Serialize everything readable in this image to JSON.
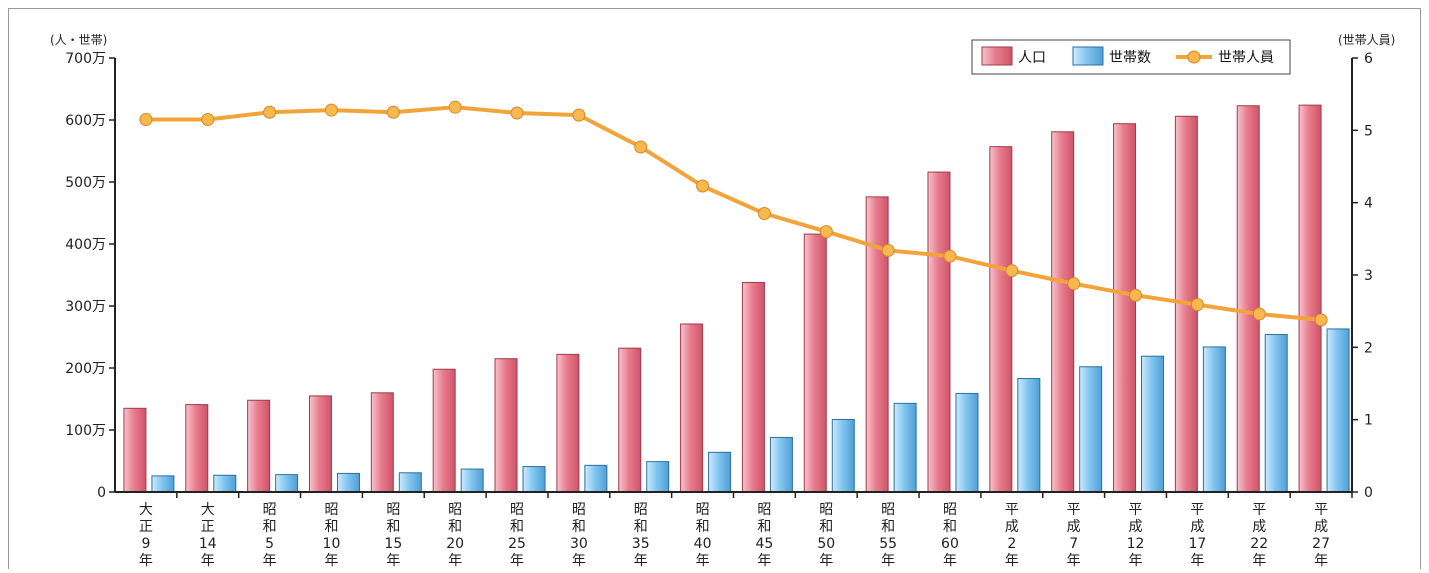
{
  "chart_data": {
    "type": "bar",
    "left_axis_unit": "(人・世帯)",
    "right_axis_unit": "(世帯人員)",
    "left_ticks": [
      "0",
      "100万",
      "200万",
      "300万",
      "400万",
      "500万",
      "600万",
      "700万"
    ],
    "right_ticks": [
      "0",
      "1",
      "2",
      "3",
      "4",
      "5",
      "6"
    ],
    "ylim_left": [
      0,
      7000000
    ],
    "ylim_right": [
      0,
      6
    ],
    "grid": false,
    "legend_position": "top-right",
    "categories": [
      [
        "大",
        "正",
        "9",
        "年"
      ],
      [
        "大",
        "正",
        "14",
        "年"
      ],
      [
        "昭",
        "和",
        "5",
        "年"
      ],
      [
        "昭",
        "和",
        "10",
        "年"
      ],
      [
        "昭",
        "和",
        "15",
        "年"
      ],
      [
        "昭",
        "和",
        "20",
        "年"
      ],
      [
        "昭",
        "和",
        "25",
        "年"
      ],
      [
        "昭",
        "和",
        "30",
        "年"
      ],
      [
        "昭",
        "和",
        "35",
        "年"
      ],
      [
        "昭",
        "和",
        "40",
        "年"
      ],
      [
        "昭",
        "和",
        "45",
        "年"
      ],
      [
        "昭",
        "和",
        "50",
        "年"
      ],
      [
        "昭",
        "和",
        "55",
        "年"
      ],
      [
        "昭",
        "和",
        "60",
        "年"
      ],
      [
        "平",
        "成",
        "2",
        "年"
      ],
      [
        "平",
        "成",
        "7",
        "年"
      ],
      [
        "平",
        "成",
        "12",
        "年"
      ],
      [
        "平",
        "成",
        "17",
        "年"
      ],
      [
        "平",
        "成",
        "22",
        "年"
      ],
      [
        "平",
        "成",
        "27",
        "年"
      ]
    ],
    "series": [
      {
        "name": "人口",
        "type": "bar",
        "axis": "left",
        "color": "#e8788a",
        "values": [
          1350000,
          1410000,
          1480000,
          1550000,
          1600000,
          1980000,
          2150000,
          2220000,
          2320000,
          2710000,
          3380000,
          4160000,
          4760000,
          5160000,
          5570000,
          5810000,
          5940000,
          6060000,
          6230000,
          6240000
        ]
      },
      {
        "name": "世帯数",
        "type": "bar",
        "axis": "left",
        "color": "#7cc0ec",
        "values": [
          260000,
          270000,
          280000,
          300000,
          310000,
          370000,
          410000,
          430000,
          490000,
          640000,
          880000,
          1170000,
          1430000,
          1590000,
          1830000,
          2020000,
          2190000,
          2340000,
          2540000,
          2630000
        ]
      },
      {
        "name": "世帯人員",
        "type": "line",
        "axis": "right",
        "color": "#f2a43a",
        "values": [
          5.15,
          5.15,
          5.25,
          5.28,
          5.25,
          5.32,
          5.24,
          5.21,
          4.77,
          4.23,
          3.85,
          3.6,
          3.34,
          3.26,
          3.06,
          2.88,
          2.72,
          2.59,
          2.46,
          2.38
        ]
      }
    ]
  }
}
